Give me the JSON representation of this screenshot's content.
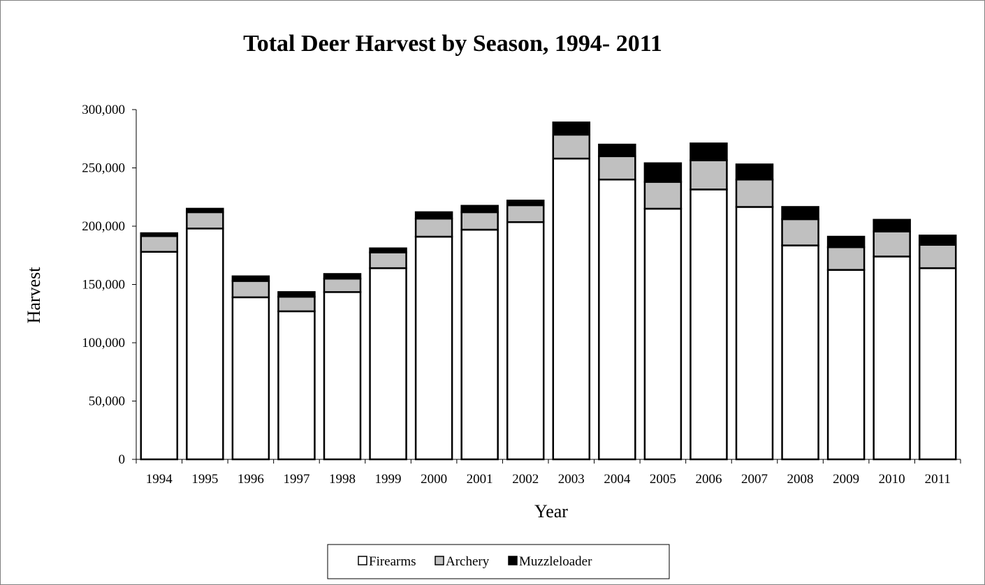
{
  "chart_data": {
    "type": "bar",
    "stacked": true,
    "title": "Total Deer Harvest by Season, 1994- 2011",
    "xlabel": "Year",
    "ylabel": "Harvest",
    "ylim": [
      0,
      300000
    ],
    "yticks": [
      0,
      50000,
      100000,
      150000,
      200000,
      250000,
      300000
    ],
    "ytick_labels": [
      "0",
      "50,000",
      "100,000",
      "150,000",
      "200,000",
      "250,000",
      "300,000"
    ],
    "grid": false,
    "legend_position": "bottom",
    "categories": [
      "1994",
      "1995",
      "1996",
      "1997",
      "1998",
      "1999",
      "2000",
      "2001",
      "2002",
      "2003",
      "2004",
      "2005",
      "2006",
      "2007",
      "2008",
      "2009",
      "2010",
      "2011"
    ],
    "series": [
      {
        "name": "Firearms",
        "color": "#ffffff",
        "values": [
          178000,
          198000,
          139000,
          127000,
          143500,
          164000,
          191000,
          197000,
          203500,
          258000,
          240000,
          215000,
          231500,
          216500,
          183500,
          162500,
          174000,
          164000
        ]
      },
      {
        "name": "Archery",
        "color": "#c0c0c0",
        "values": [
          13500,
          14000,
          14000,
          12500,
          11500,
          13500,
          15500,
          15000,
          14500,
          20500,
          20000,
          23000,
          25000,
          23500,
          22500,
          19500,
          21500,
          20000
        ]
      },
      {
        "name": "Muzzleloader",
        "color": "#000000",
        "values": [
          2500,
          3000,
          4000,
          4000,
          4000,
          3500,
          5500,
          5500,
          4000,
          10500,
          10000,
          16000,
          14500,
          13000,
          10500,
          9000,
          10000,
          8000
        ]
      }
    ]
  }
}
